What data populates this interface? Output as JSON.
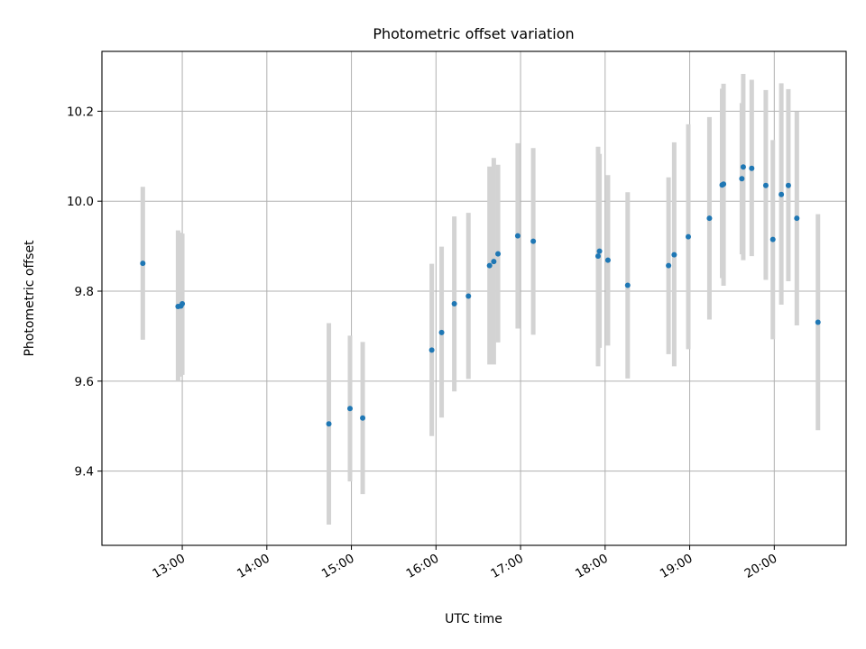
{
  "chart_data": {
    "type": "scatter",
    "title": "Photometric offset variation",
    "xlabel": "UTC time",
    "ylabel": "Photometric offset",
    "x_ticks": [
      "13:00",
      "14:00",
      "15:00",
      "16:00",
      "17:00",
      "18:00",
      "19:00",
      "20:00"
    ],
    "y_ticks": [
      "9.4",
      "9.6",
      "9.8",
      "10.0",
      "10.2"
    ],
    "xlim": [
      "12:03",
      "20:51"
    ],
    "ylim": [
      9.235,
      10.333
    ],
    "grid": true,
    "colors": {
      "marker": "#1f77b4",
      "errorbar": "#d3d3d3"
    },
    "points": [
      {
        "time": "12:32",
        "y": 9.862,
        "err_low": 9.692,
        "err_high": 10.032
      },
      {
        "time": "12:57",
        "y": 9.766,
        "err_low": 9.6,
        "err_high": 9.935
      },
      {
        "time": "12:59",
        "y": 9.767,
        "err_low": 9.61,
        "err_high": 9.93
      },
      {
        "time": "13:00",
        "y": 9.772,
        "err_low": 9.614,
        "err_high": 9.928
      },
      {
        "time": "14:44",
        "y": 9.505,
        "err_low": 9.281,
        "err_high": 9.729
      },
      {
        "time": "14:59",
        "y": 9.539,
        "err_low": 9.377,
        "err_high": 9.701
      },
      {
        "time": "15:08",
        "y": 9.518,
        "err_low": 9.349,
        "err_high": 9.687
      },
      {
        "time": "15:57",
        "y": 9.669,
        "err_low": 9.478,
        "err_high": 9.861
      },
      {
        "time": "16:04",
        "y": 9.708,
        "err_low": 9.519,
        "err_high": 9.899
      },
      {
        "time": "16:13",
        "y": 9.772,
        "err_low": 9.577,
        "err_high": 9.966
      },
      {
        "time": "16:23",
        "y": 9.789,
        "err_low": 9.605,
        "err_high": 9.974
      },
      {
        "time": "16:38",
        "y": 9.857,
        "err_low": 9.637,
        "err_high": 10.077
      },
      {
        "time": "16:41",
        "y": 9.866,
        "err_low": 9.637,
        "err_high": 10.096
      },
      {
        "time": "16:44",
        "y": 9.883,
        "err_low": 9.686,
        "err_high": 10.081
      },
      {
        "time": "16:58",
        "y": 9.923,
        "err_low": 9.717,
        "err_high": 10.129
      },
      {
        "time": "17:09",
        "y": 9.911,
        "err_low": 9.703,
        "err_high": 10.118
      },
      {
        "time": "17:55",
        "y": 9.878,
        "err_low": 9.633,
        "err_high": 10.121
      },
      {
        "time": "17:56",
        "y": 9.889,
        "err_low": 9.674,
        "err_high": 10.105
      },
      {
        "time": "18:02",
        "y": 9.869,
        "err_low": 9.679,
        "err_high": 10.058
      },
      {
        "time": "18:16",
        "y": 9.813,
        "err_low": 9.606,
        "err_high": 10.02
      },
      {
        "time": "18:45",
        "y": 9.857,
        "err_low": 9.66,
        "err_high": 10.053
      },
      {
        "time": "18:49",
        "y": 9.881,
        "err_low": 9.633,
        "err_high": 10.131
      },
      {
        "time": "18:59",
        "y": 9.921,
        "err_low": 9.671,
        "err_high": 10.171
      },
      {
        "time": "19:14",
        "y": 9.962,
        "err_low": 9.737,
        "err_high": 10.187
      },
      {
        "time": "19:23",
        "y": 10.036,
        "err_low": 9.829,
        "err_high": 10.25
      },
      {
        "time": "19:24",
        "y": 10.038,
        "err_low": 9.812,
        "err_high": 10.261
      },
      {
        "time": "19:37",
        "y": 10.05,
        "err_low": 9.882,
        "err_high": 10.218
      },
      {
        "time": "19:38",
        "y": 10.076,
        "err_low": 9.869,
        "err_high": 10.283
      },
      {
        "time": "19:44",
        "y": 10.073,
        "err_low": 9.878,
        "err_high": 10.27
      },
      {
        "time": "19:54",
        "y": 10.035,
        "err_low": 9.825,
        "err_high": 10.247
      },
      {
        "time": "19:59",
        "y": 9.915,
        "err_low": 9.693,
        "err_high": 10.136
      },
      {
        "time": "20:05",
        "y": 10.015,
        "err_low": 9.77,
        "err_high": 10.262
      },
      {
        "time": "20:10",
        "y": 10.035,
        "err_low": 9.822,
        "err_high": 10.249
      },
      {
        "time": "20:16",
        "y": 9.962,
        "err_low": 9.724,
        "err_high": 10.199
      },
      {
        "time": "20:31",
        "y": 9.731,
        "err_low": 9.491,
        "err_high": 9.971
      }
    ]
  }
}
